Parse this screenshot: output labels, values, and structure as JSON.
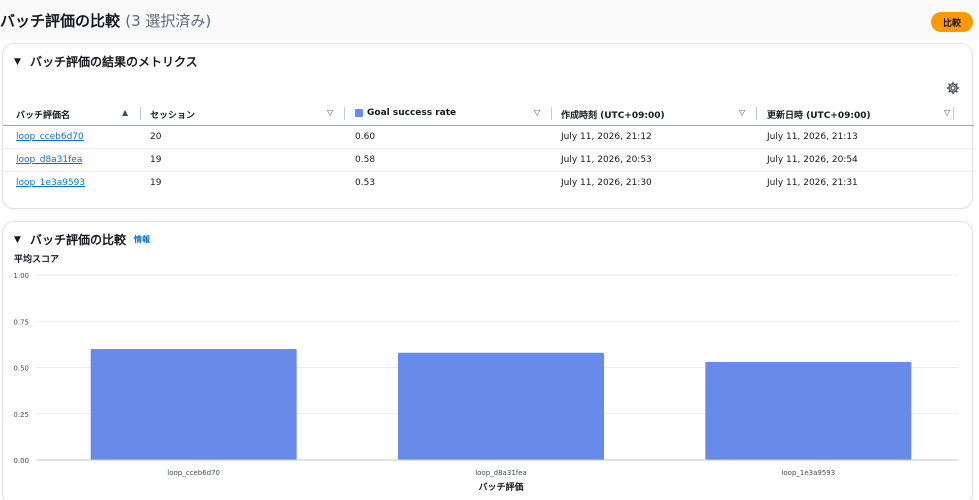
{
  "header": {
    "title": "バッチ評価の比較",
    "selected_count": "(3 選択済み)",
    "compare_button": "比較"
  },
  "metrics_panel": {
    "heading": "バッチ評価の結果のメトリクス",
    "columns": [
      "バッチ評価名",
      "セッション",
      "Goal success rate",
      "作成時刻 (UTC+09:00)",
      "更新日時 (UTC+09:00)"
    ],
    "rows": [
      {
        "name": "loop_cceb6d70",
        "sessions": "20",
        "goal_success_rate": "0.60",
        "created": "July 11, 2026, 21:12",
        "updated": "July 11, 2026, 21:13"
      },
      {
        "name": "loop_d8a31fea",
        "sessions": "19",
        "goal_success_rate": "0.58",
        "created": "July 11, 2026, 20:53",
        "updated": "July 11, 2026, 20:54"
      },
      {
        "name": "loop_1e3a9593",
        "sessions": "19",
        "goal_success_rate": "0.53",
        "created": "July 11, 2026, 21:30",
        "updated": "July 11, 2026, 21:31"
      }
    ]
  },
  "chart_panel": {
    "heading": "バッチ評価の比較",
    "info_link": "情報"
  },
  "colors": {
    "accent": "#ff9900",
    "link": "#0972d3",
    "bar": "#688ae8"
  },
  "icons": {
    "settings": "gear-icon",
    "collapse": "caret-down-icon",
    "sort_active": "sort-ascending-icon",
    "sort": "sort-descending-icon"
  },
  "chart_data": {
    "type": "bar",
    "categories": [
      "loop_cceb6d70",
      "loop_d8a31fea",
      "loop_1e3a9593"
    ],
    "values": [
      0.6,
      0.58,
      0.53
    ],
    "title": "",
    "xlabel": "バッチ評価",
    "ylabel": "平均スコア",
    "ylim": [
      0,
      1
    ],
    "yticks": [
      "0.00",
      "0.25",
      "0.50",
      "0.75",
      "1.00"
    ],
    "grid": true,
    "color": "#688ae8"
  }
}
